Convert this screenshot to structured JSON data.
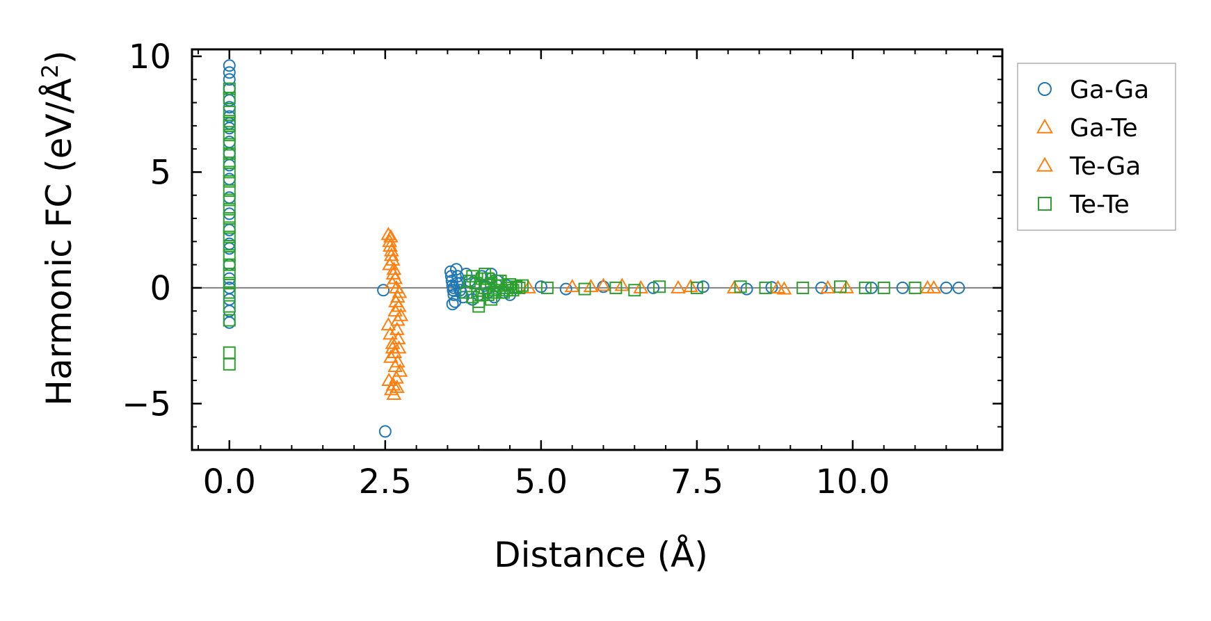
{
  "colors": {
    "ga_ga": "#1f77b4",
    "ga_te": "#ff7f0e",
    "te_ga": "#ff7f0e",
    "te_te": "#2ca02c",
    "zero_line": "#808080"
  },
  "chart_data": {
    "type": "scatter",
    "title": "",
    "xlabel": "Distance (Å)",
    "ylabel_text": "Harmonic FC (eV/Å",
    "ylabel_sup": "2",
    "ylabel_close": ")",
    "xlim": [
      -0.6,
      12.4
    ],
    "ylim": [
      -7.0,
      10.3
    ],
    "xticks": [
      0.0,
      2.5,
      5.0,
      7.5,
      10.0
    ],
    "xtick_labels": [
      "0.0",
      "2.5",
      "5.0",
      "7.5",
      "10.0"
    ],
    "yticks": [
      -5,
      0,
      5,
      10
    ],
    "ytick_labels": [
      "−5",
      "0",
      "5",
      "10"
    ],
    "x_minor_step": 0.5,
    "y_minor_step": 1.0,
    "zero_line": 0,
    "legend_position": "outside-right-top",
    "series": [
      {
        "name": "Ga-Ga",
        "marker": "circle",
        "color_key": "ga_ga",
        "x": [
          0.0,
          0.0,
          0.0,
          0.0,
          0.0,
          0.0,
          0.0,
          0.0,
          0.0,
          0.0,
          0.0,
          0.0,
          0.0,
          0.0,
          0.0,
          0.0,
          0.0,
          0.0,
          0.0,
          0.0,
          0.0,
          0.0,
          0.0,
          0.0,
          2.47,
          2.5,
          3.55,
          3.56,
          3.57,
          3.58,
          3.59,
          3.6,
          3.62,
          3.64,
          3.66,
          3.7,
          3.72,
          3.75,
          3.8,
          3.85,
          3.9,
          3.95,
          4.0,
          4.05,
          4.1,
          4.15,
          4.2,
          4.25,
          4.3,
          3.6,
          3.65,
          3.7,
          3.58,
          4.2,
          4.3,
          4.4,
          4.45,
          4.5,
          5.0,
          5.4,
          6.0,
          6.8,
          7.6,
          8.3,
          8.7,
          9.5,
          10.3,
          10.8,
          11.5,
          11.7
        ],
        "y": [
          9.6,
          9.3,
          9.0,
          8.6,
          8.1,
          7.8,
          7.4,
          7.1,
          6.9,
          6.3,
          5.8,
          5.3,
          4.7,
          3.9,
          3.2,
          2.5,
          1.9,
          1.7,
          1.0,
          0.4,
          0.0,
          -0.5,
          -1.0,
          -1.5,
          -0.1,
          -6.2,
          0.7,
          0.5,
          0.3,
          0.1,
          -0.1,
          -0.3,
          -0.6,
          0.8,
          0.5,
          0.2,
          -0.2,
          -0.4,
          0.6,
          0.3,
          -0.5,
          0.2,
          -0.3,
          0.5,
          0.1,
          -0.2,
          0.4,
          -0.4,
          0.1,
          0.0,
          0.2,
          -0.1,
          -0.7,
          0.6,
          0.3,
          -0.2,
          0.1,
          -0.3,
          0.05,
          -0.05,
          0.05,
          0.0,
          0.05,
          -0.05,
          0.02,
          0.0,
          0.0,
          0.0,
          0.0,
          0.0
        ]
      },
      {
        "name": "Ga-Te",
        "marker": "triangle",
        "color_key": "ga_te",
        "x": [
          2.55,
          2.57,
          2.6,
          2.62,
          2.64,
          2.66,
          2.68,
          2.7,
          2.72,
          2.75,
          2.55,
          2.58,
          2.62,
          2.65,
          2.7,
          2.74,
          2.56,
          2.6,
          2.64,
          2.68,
          2.72,
          2.57,
          2.61,
          2.66,
          2.71,
          2.59,
          2.63,
          2.69,
          5.8,
          6.3,
          7.2,
          8.8,
          9.6,
          11.3
        ],
        "y": [
          2.3,
          2.0,
          1.6,
          1.2,
          0.8,
          0.4,
          0.0,
          -0.4,
          -0.8,
          -1.2,
          -1.6,
          -2.0,
          -2.4,
          -2.8,
          -3.2,
          -3.6,
          -4.0,
          -4.4,
          -4.6,
          -3.9,
          -2.6,
          1.0,
          0.2,
          -1.0,
          -2.2,
          -3.0,
          -4.2,
          -1.8,
          0.05,
          0.1,
          0.0,
          0.0,
          0.0,
          0.0
        ]
      },
      {
        "name": "Te-Ga",
        "marker": "triangle",
        "color_key": "te_ga",
        "x": [
          2.58,
          2.6,
          2.63,
          2.67,
          2.7,
          2.73,
          2.59,
          2.62,
          2.66,
          2.69,
          4.8,
          5.5,
          6.0,
          6.6,
          7.4,
          8.1,
          8.9,
          9.9,
          11.2
        ],
        "y": [
          1.8,
          1.4,
          0.6,
          -0.6,
          -1.4,
          -0.2,
          2.2,
          -2.6,
          -3.4,
          -4.3,
          0.0,
          0.05,
          0.1,
          0.0,
          0.05,
          0.0,
          -0.05,
          0.0,
          0.0
        ],
        "legend_label": "Te-Ga"
      },
      {
        "name": "Te-Te",
        "marker": "square",
        "color_key": "te_te",
        "x": [
          0.0,
          0.0,
          0.0,
          0.0,
          0.0,
          0.0,
          0.0,
          0.0,
          0.0,
          0.0,
          0.0,
          0.0,
          0.0,
          0.0,
          0.0,
          0.0,
          0.0,
          0.0,
          0.0,
          0.0,
          0.0,
          0.0,
          0.0,
          0.0,
          0.0,
          0.0,
          0.0,
          3.8,
          3.85,
          3.9,
          3.95,
          4.0,
          4.05,
          4.1,
          4.15,
          4.2,
          4.25,
          4.3,
          4.35,
          4.4,
          4.45,
          4.5,
          4.55,
          4.6,
          4.65,
          4.7,
          3.9,
          4.0,
          4.1,
          4.2,
          4.3,
          4.05,
          4.15,
          4.25,
          4.35,
          4.45,
          5.1,
          5.7,
          6.2,
          6.5,
          6.9,
          7.5,
          8.2,
          8.6,
          9.2,
          9.8,
          10.2,
          10.5,
          11.0
        ],
        "y": [
          8.6,
          8.2,
          7.6,
          7.2,
          7.0,
          6.6,
          6.2,
          5.8,
          5.4,
          5.0,
          4.6,
          4.2,
          3.8,
          3.4,
          3.0,
          2.6,
          2.2,
          1.8,
          1.4,
          1.0,
          0.6,
          0.2,
          -0.2,
          -0.8,
          -1.4,
          -2.8,
          -3.3,
          -0.2,
          0.3,
          -0.4,
          0.2,
          -0.6,
          0.4,
          0.0,
          -0.3,
          0.2,
          -0.1,
          0.1,
          0.3,
          -0.2,
          0.0,
          0.15,
          -0.1,
          0.05,
          0.0,
          0.1,
          0.5,
          -0.8,
          0.6,
          -0.5,
          0.3,
          -0.3,
          0.4,
          -0.2,
          0.1,
          -0.1,
          0.0,
          -0.05,
          0.0,
          -0.1,
          0.05,
          0.0,
          0.05,
          0.0,
          0.0,
          0.05,
          0.0,
          0.0,
          0.0
        ]
      }
    ]
  }
}
